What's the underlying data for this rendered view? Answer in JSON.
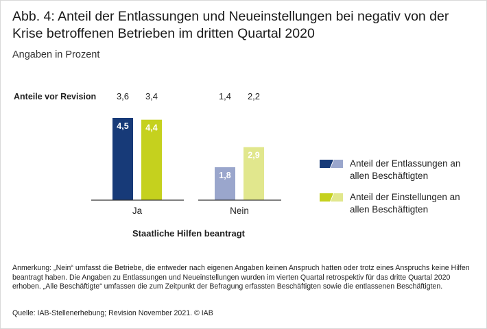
{
  "title": "Abb. 4: Anteil der Entlassungen und Neueinstellungen bei negativ von der Krise betroffenen Betrieben im dritten Quartal 2020",
  "subtitle": "Angaben in Prozent",
  "note": "Anmerkung: „Nein“ umfasst die Betriebe, die entweder nach eigenen Angaben keinen Anspruch hatten oder trotz eines Anspruchs keine Hilfen beantragt haben. Die Angaben zu Entlassungen und Neueinstellungen wurden im vierten Quartal retrospektiv für das dritte Quartal 2020 erhoben. „Alle Beschäftigte“ umfassen die zum Zeitpunkt der Befragung erfassten Beschäftigten sowie die entlassenen Beschäftigten.",
  "source": "Quelle: IAB-Stellenerhebung; Revision November 2021. © IAB",
  "chart_data": {
    "type": "bar",
    "categories": [
      "Ja",
      "Nein"
    ],
    "xlabel": "Staatliche Hilfen beantragt",
    "ylabel": "",
    "ylim": [
      0,
      4.5
    ],
    "series": [
      {
        "name": "Anteil der Entlassungen an allen Beschäftigten",
        "values": [
          4.5,
          1.8
        ],
        "labels": [
          "4,5",
          "1,8"
        ],
        "colors": [
          "#173a78",
          "#9aa6cc"
        ],
        "pre_revision": [
          3.6,
          1.4
        ],
        "pre_revision_labels": [
          "3,6",
          "1,4"
        ]
      },
      {
        "name": "Anteil der Einstellungen an allen Beschäftigten",
        "values": [
          4.4,
          2.9
        ],
        "labels": [
          "4,4",
          "2,9"
        ],
        "colors": [
          "#c5d11e",
          "#e1e78d"
        ],
        "pre_revision": [
          3.4,
          2.2
        ],
        "pre_revision_labels": [
          "3,4",
          "2,2"
        ]
      }
    ],
    "pre_revision_label": "Anteile vor Revision",
    "grid": false,
    "legend_position": "right"
  }
}
